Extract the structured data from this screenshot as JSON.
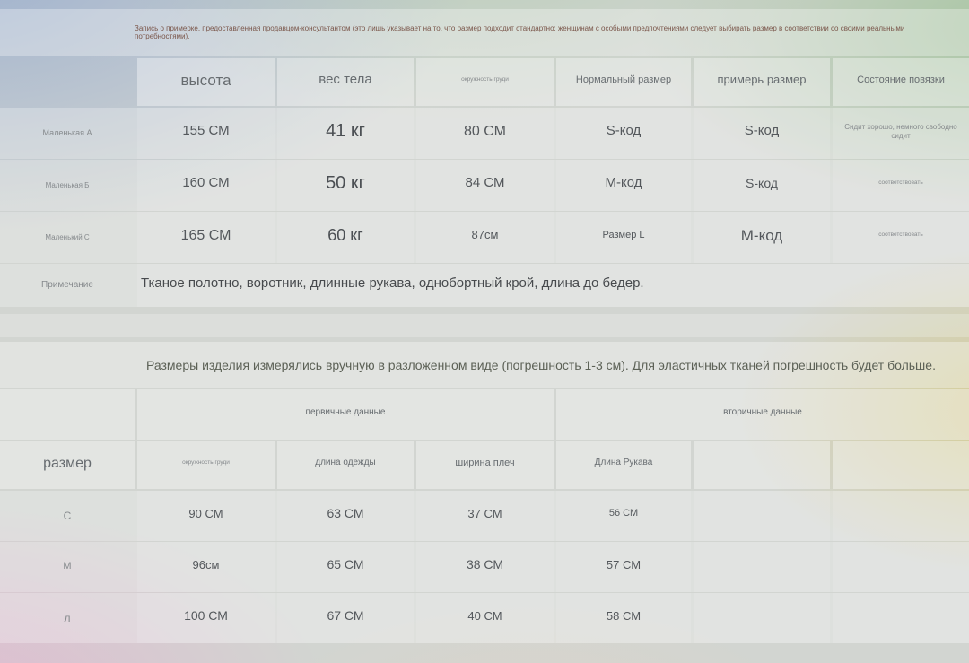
{
  "fitting_note": "Запись о примерке, предоставленная продавцом-консультантом (это лишь указывает на то, что размер подходит стандартно; женщинам с особыми предпочтениями следует выбирать размер в соответствии со своими реальными потребностями).",
  "fitting_table": {
    "headers": [
      "высота",
      "вес тела",
      "окружность груди",
      "Нормальный размер",
      "примерь размер",
      "Состояние повязки"
    ],
    "rows": [
      {
        "label": "Маленькая А",
        "height": "155 СМ",
        "weight": "41 кг",
        "chest": "80 СМ",
        "normal_size": "S-код",
        "try_size": "S-код",
        "fit": "Сидит хорошо, немного свободно сидит"
      },
      {
        "label": "Маленькая Б",
        "height": "160 СМ",
        "weight": "50 кг",
        "chest": "84 СМ",
        "normal_size": "М-код",
        "try_size": "S-код",
        "fit": "соответствовать"
      },
      {
        "label": "Маленький С",
        "height": "165 СМ",
        "weight": "60 кг",
        "chest": "87см",
        "normal_size": "Размер L",
        "try_size": "М-код",
        "fit": "соответствовать"
      }
    ],
    "note_label": "Примечание",
    "note_text": "Тканое полотно, воротник, длинные рукава, однобортный крой, длина до бедер."
  },
  "measurement_table": {
    "title": "Размеры изделия измерялись вручную в разложенном виде (погрешность 1-3 см). Для эластичных тканей погрешность будет больше.",
    "group_primary": "первичные данные",
    "group_secondary": "вторичные данные",
    "size_header": "размер",
    "columns": [
      "окружность груди",
      "длина одежды",
      "ширина плеч",
      "Длина Рукава"
    ],
    "rows": [
      {
        "size": "С",
        "chest": "90 СМ",
        "length": "63 СМ",
        "shoulder": "37 СМ",
        "sleeve": "56 СМ"
      },
      {
        "size": "М",
        "chest": "96см",
        "length": "65 СМ",
        "shoulder": "38 СМ",
        "sleeve": "57 СМ"
      },
      {
        "size": "л",
        "chest": "100 СМ",
        "length": "67 СМ",
        "shoulder": "40 СМ",
        "sleeve": "58 СМ"
      }
    ]
  },
  "colors": {
    "disclaimer_text": "#7a564a",
    "title_text": "#5c6156",
    "value_text": "#54585c"
  }
}
